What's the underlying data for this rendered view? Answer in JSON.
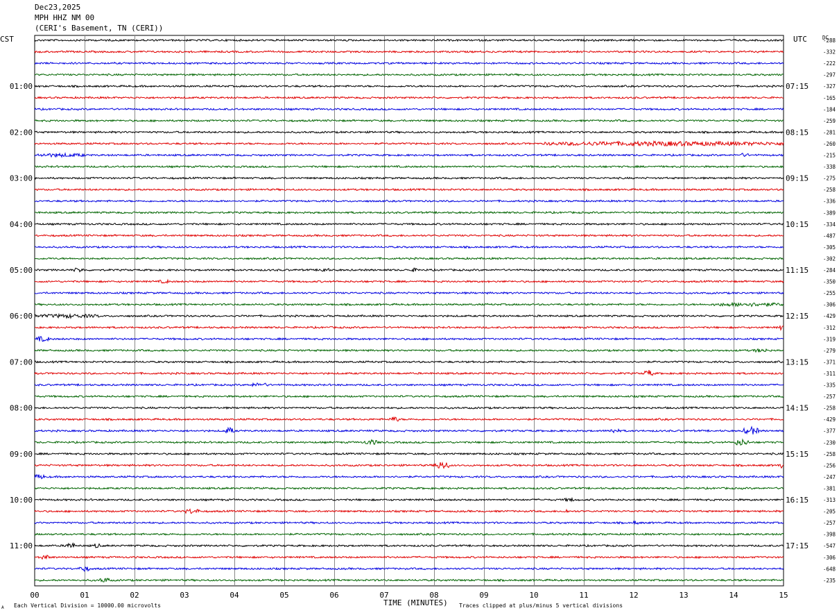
{
  "header": {
    "date": "Dec23,2025",
    "station": "MPH HHZ NM 00",
    "location": "(CERI's Basement, TN (CERI))"
  },
  "footer": {
    "scale_note": "Each Vertical Division = 10000.00 microvolts",
    "clip_note": "Traces clipped at plus/minus 5 vertical divisions",
    "corner_mark": "A"
  },
  "colors": {
    "trace_cycle": [
      "#000000",
      "#e00000",
      "#0000e0",
      "#006400"
    ],
    "grid": "#888888"
  },
  "chart_data": {
    "type": "line",
    "title": "",
    "xlabel": "TIME (MINUTES)",
    "left_axis_label": "CST",
    "right_axis_label": "UTC",
    "dc_label": "DC",
    "xlim": [
      0,
      15
    ],
    "x_ticks": [
      "00",
      "01",
      "02",
      "03",
      "04",
      "05",
      "06",
      "07",
      "08",
      "09",
      "10",
      "11",
      "12",
      "13",
      "14",
      "15"
    ],
    "num_traces": 48,
    "minutes_per_trace": 15,
    "left_hour_labels": [
      "01:00",
      "02:00",
      "03:00",
      "04:00",
      "05:00",
      "06:00",
      "07:00",
      "08:00",
      "09:00",
      "10:00",
      "11:00"
    ],
    "right_hour_labels": [
      "07:15",
      "08:15",
      "09:15",
      "10:15",
      "11:15",
      "12:15",
      "13:15",
      "14:15",
      "15:15",
      "16:15",
      "17:15"
    ],
    "dc_offsets": [
      "-288",
      "-332",
      "-222",
      "-297",
      "-327",
      "-165",
      "-184",
      "-259",
      "-281",
      "-260",
      "-215",
      "-338",
      "-275",
      "-258",
      "-336",
      "-389",
      "-334",
      "-487",
      "-305",
      "-302",
      "-284",
      "-350",
      "-255",
      "-306",
      "-429",
      "-312",
      "-319",
      "-279",
      "-371",
      "-311",
      "-335",
      "-257",
      "-258",
      "-429",
      "-377",
      "-230",
      "-258",
      "-256",
      "-247",
      "-381",
      "-313",
      "-205",
      "-257",
      "-398",
      "-547",
      "-306",
      "-648",
      "-235"
    ],
    "events": [
      {
        "trace": 9,
        "start": 10.2,
        "end": 15,
        "amp": 2.5
      },
      {
        "trace": 10,
        "start": 0,
        "end": 1.0,
        "amp": 2.0
      },
      {
        "trace": 10,
        "start": 14.1,
        "end": 14.3,
        "amp": 2.0
      },
      {
        "trace": 20,
        "start": 0.75,
        "end": 1.0,
        "amp": 2.5
      },
      {
        "trace": 20,
        "start": 5.7,
        "end": 5.9,
        "amp": 2.5
      },
      {
        "trace": 20,
        "start": 7.5,
        "end": 7.7,
        "amp": 2.0
      },
      {
        "trace": 21,
        "start": 2.5,
        "end": 2.7,
        "amp": 2.0
      },
      {
        "trace": 23,
        "start": 13.6,
        "end": 15,
        "amp": 2.0
      },
      {
        "trace": 24,
        "start": 0,
        "end": 1.3,
        "amp": 2.0
      },
      {
        "trace": 25,
        "start": 14.9,
        "end": 15,
        "amp": 3.0
      },
      {
        "trace": 26,
        "start": 0,
        "end": 0.3,
        "amp": 3.0
      },
      {
        "trace": 27,
        "start": 14.4,
        "end": 14.7,
        "amp": 2.0
      },
      {
        "trace": 29,
        "start": 12.2,
        "end": 12.4,
        "amp": 4.0
      },
      {
        "trace": 30,
        "start": 4.3,
        "end": 4.7,
        "amp": 2.0
      },
      {
        "trace": 33,
        "start": 7.1,
        "end": 7.3,
        "amp": 3.0
      },
      {
        "trace": 34,
        "start": 3.8,
        "end": 4.0,
        "amp": 4.0
      },
      {
        "trace": 34,
        "start": 11.5,
        "end": 11.7,
        "amp": 2.5
      },
      {
        "trace": 34,
        "start": 14.2,
        "end": 14.5,
        "amp": 5.0
      },
      {
        "trace": 35,
        "start": 6.6,
        "end": 6.9,
        "amp": 3.0
      },
      {
        "trace": 35,
        "start": 14.0,
        "end": 14.3,
        "amp": 4.0
      },
      {
        "trace": 37,
        "start": 8.0,
        "end": 8.3,
        "amp": 5.0
      },
      {
        "trace": 37,
        "start": 14.9,
        "end": 15,
        "amp": 3.5
      },
      {
        "trace": 38,
        "start": 0,
        "end": 0.2,
        "amp": 3.0
      },
      {
        "trace": 40,
        "start": 10.6,
        "end": 10.8,
        "amp": 2.0
      },
      {
        "trace": 41,
        "start": 3.0,
        "end": 3.3,
        "amp": 3.0
      },
      {
        "trace": 41,
        "start": 10.6,
        "end": 10.7,
        "amp": 2.5
      },
      {
        "trace": 42,
        "start": 12.0,
        "end": 12.1,
        "amp": 2.5
      },
      {
        "trace": 44,
        "start": 0.6,
        "end": 0.8,
        "amp": 4.0
      },
      {
        "trace": 44,
        "start": 1.2,
        "end": 1.3,
        "amp": 3.5
      },
      {
        "trace": 45,
        "start": 0.1,
        "end": 0.3,
        "amp": 3.0
      },
      {
        "trace": 46,
        "start": 0.9,
        "end": 1.1,
        "amp": 3.5
      },
      {
        "trace": 47,
        "start": 1.3,
        "end": 1.5,
        "amp": 3.0
      }
    ]
  }
}
